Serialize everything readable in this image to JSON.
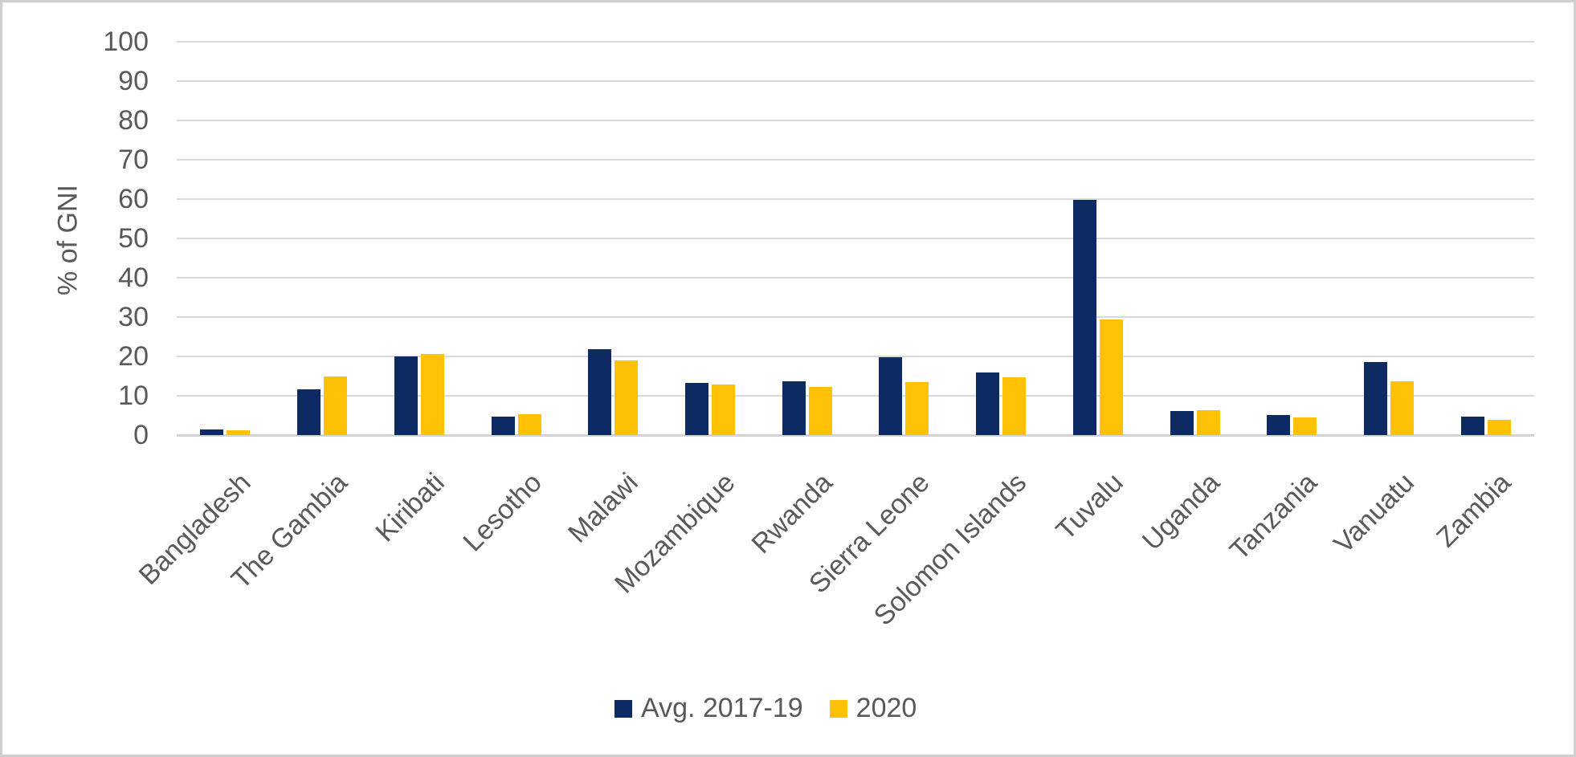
{
  "chart_data": {
    "type": "bar",
    "title": "",
    "ylabel": "% of GNI",
    "xlabel": "",
    "ylim": [
      0,
      100
    ],
    "yticks": [
      100,
      90,
      80,
      70,
      60,
      50,
      40,
      30,
      20,
      10,
      0
    ],
    "grid": "horizontal",
    "legend_position": "bottom",
    "categories": [
      "Bangladesh",
      "The Gambia",
      "Kiribati",
      "Lesotho",
      "Malawi",
      "Mozambique",
      "Rwanda",
      "Sierra Leone",
      "Solomon Islands",
      "Tuvalu",
      "Uganda",
      "Tanzania",
      "Vanuatu",
      "Zambia"
    ],
    "series": [
      {
        "name": "Avg. 2017-19",
        "color": "#0d2a63",
        "values": [
          1.5,
          11.7,
          20.0,
          4.6,
          21.8,
          13.2,
          13.7,
          19.7,
          15.9,
          59.8,
          6.1,
          5.2,
          18.6,
          4.6
        ]
      },
      {
        "name": "2020",
        "color": "#ffc105",
        "values": [
          1.2,
          14.9,
          20.7,
          5.3,
          19.0,
          12.8,
          12.2,
          13.5,
          14.7,
          29.4,
          6.4,
          4.4,
          13.7,
          3.9
        ]
      }
    ]
  },
  "colors": {
    "text": "#595959",
    "gridline": "#d9d9d9",
    "axis_line": "#d3d3d3",
    "frame_border": "#cfcfcf",
    "background": "#ffffff"
  }
}
